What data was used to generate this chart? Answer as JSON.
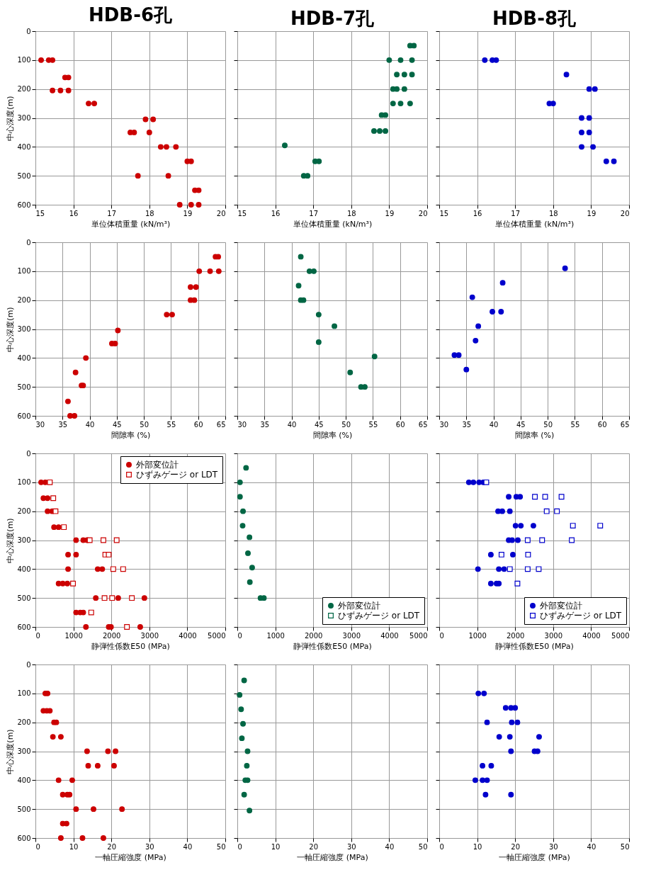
{
  "chart_data": [
    {
      "type": "scatter",
      "title": "HDB-6孔",
      "xlabel": "単位体積重量 (kN/m³)",
      "ylabel": "中心深度(m)",
      "xlim": [
        15,
        20
      ],
      "xticks": [
        15,
        16,
        17,
        18,
        19,
        20
      ],
      "ylim": [
        600,
        0
      ],
      "yticks": [
        0,
        100,
        200,
        300,
        400,
        500,
        600
      ],
      "grid": true,
      "marker": "circle",
      "series": [
        {
          "color": "#cc0000",
          "x": [
            15.15,
            15.35,
            15.45,
            15.78,
            15.87,
            15.45,
            15.66,
            15.87,
            16.4,
            16.55,
            17.9,
            18.1,
            17.5,
            17.6,
            18.0,
            18.3,
            18.45,
            18.7,
            19.0,
            19.1,
            17.7,
            18.5,
            19.2,
            19.3,
            18.8,
            19.1,
            19.3
          ],
          "values": [
            100,
            100,
            100,
            160,
            160,
            205,
            205,
            205,
            250,
            250,
            305,
            305,
            350,
            350,
            350,
            400,
            400,
            400,
            450,
            450,
            500,
            500,
            550,
            550,
            600,
            600,
            600
          ]
        }
      ]
    },
    {
      "type": "scatter",
      "title": "HDB-7孔",
      "xlabel": "単位体積重量 (kN/m³)",
      "xlim": [
        15,
        20
      ],
      "xticks": [
        15,
        16,
        17,
        18,
        19,
        20
      ],
      "ylim": [
        600,
        0
      ],
      "yticks": [
        0,
        100,
        200,
        300,
        400,
        500,
        600
      ],
      "tick_labels": "x",
      "grid": true,
      "marker": "circle",
      "series": [
        {
          "color": "#006644",
          "x": [
            19.55,
            19.65,
            19.0,
            19.3,
            19.6,
            19.2,
            19.4,
            19.6,
            19.1,
            19.2,
            19.4,
            19.1,
            19.3,
            19.55,
            18.8,
            18.9,
            18.6,
            18.75,
            18.9,
            16.25,
            17.05,
            17.15,
            16.75,
            16.85
          ],
          "values": [
            50,
            50,
            100,
            100,
            100,
            150,
            150,
            150,
            200,
            200,
            200,
            250,
            250,
            250,
            290,
            290,
            345,
            345,
            345,
            395,
            450,
            450,
            500,
            500
          ]
        }
      ]
    },
    {
      "type": "scatter",
      "title": "HDB-8孔",
      "xlabel": "単位体積重量 (kN/m³)",
      "xlim": [
        15,
        20
      ],
      "xticks": [
        15,
        16,
        17,
        18,
        19,
        20
      ],
      "ylim": [
        600,
        0
      ],
      "yticks": [
        0,
        100,
        200,
        300,
        400,
        500,
        600
      ],
      "tick_labels": "x",
      "grid": true,
      "marker": "circle",
      "series": [
        {
          "color": "#0000cc",
          "x": [
            16.2,
            16.4,
            16.5,
            18.35,
            18.95,
            19.1,
            17.9,
            18.0,
            18.75,
            18.95,
            18.75,
            18.95,
            18.75,
            19.05,
            19.4,
            19.6
          ],
          "values": [
            100,
            100,
            100,
            150,
            200,
            200,
            250,
            250,
            300,
            300,
            350,
            350,
            400,
            400,
            450,
            450
          ]
        }
      ]
    },
    {
      "type": "scatter",
      "xlabel": "間隙率 (%)",
      "ylabel": "中心深度(m)",
      "xlim": [
        30,
        65
      ],
      "xticks": [
        30,
        35,
        40,
        45,
        50,
        55,
        60,
        65
      ],
      "ylim": [
        600,
        0
      ],
      "yticks": [
        0,
        100,
        200,
        300,
        400,
        500,
        600
      ],
      "grid": true,
      "marker": "circle",
      "series": [
        {
          "color": "#cc0000",
          "x": [
            63.2,
            63.7,
            60.2,
            62.2,
            63.8,
            58.6,
            59.6,
            58.6,
            59.3,
            54.2,
            55.2,
            45.2,
            44.1,
            44.7,
            39.3,
            37.4,
            38.5,
            38.8,
            36.0,
            36.4,
            37.2
          ],
          "values": [
            50,
            50,
            100,
            100,
            100,
            155,
            155,
            200,
            200,
            250,
            250,
            305,
            350,
            350,
            400,
            450,
            495,
            495,
            550,
            600,
            600
          ]
        }
      ]
    },
    {
      "type": "scatter",
      "xlabel": "間隙率 (%)",
      "xlim": [
        30,
        65
      ],
      "xticks": [
        30,
        35,
        40,
        45,
        50,
        55,
        60,
        65
      ],
      "ylim": [
        600,
        0
      ],
      "yticks": [
        0,
        100,
        200,
        300,
        400,
        500,
        600
      ],
      "tick_labels": "x",
      "grid": true,
      "marker": "circle",
      "series": [
        {
          "color": "#006644",
          "x": [
            41.7,
            43.3,
            44.1,
            41.3,
            41.7,
            42.2,
            45.0,
            47.9,
            45.0,
            55.3,
            50.8,
            52.8,
            53.5
          ],
          "values": [
            50,
            100,
            100,
            150,
            200,
            200,
            250,
            290,
            345,
            395,
            450,
            500,
            500
          ]
        }
      ]
    },
    {
      "type": "scatter",
      "xlabel": "間隙率 (%)",
      "xlim": [
        30,
        65
      ],
      "xticks": [
        30,
        35,
        40,
        45,
        50,
        55,
        60,
        65
      ],
      "ylim": [
        600,
        0
      ],
      "yticks": [
        0,
        100,
        200,
        300,
        400,
        500,
        600
      ],
      "tick_labels": "x",
      "grid": true,
      "marker": "circle",
      "series": [
        {
          "color": "#0000cc",
          "x": [
            53.2,
            41.7,
            36.1,
            39.8,
            41.4,
            37.2,
            36.7,
            32.8,
            33.6,
            35.0
          ],
          "values": [
            90,
            140,
            190,
            240,
            240,
            290,
            340,
            390,
            390,
            440
          ]
        }
      ]
    },
    {
      "type": "scatter",
      "xlabel": "静弾性係数E50 (MPa)",
      "ylabel": "中心深度(m)",
      "xlim": [
        0,
        5000
      ],
      "xticks": [
        0,
        1000,
        2000,
        3000,
        4000,
        5000
      ],
      "ylim": [
        600,
        0
      ],
      "yticks": [
        0,
        100,
        200,
        300,
        400,
        500,
        600
      ],
      "grid": true,
      "legend": "top right",
      "series": [
        {
          "name": "外部変位計",
          "marker": "circle",
          "color": "#cc0000",
          "x": [
            150,
            260,
            210,
            320,
            320,
            440,
            490,
            610,
            1070,
            1260,
            1360,
            860,
            1070,
            860,
            1640,
            1760,
            610,
            720,
            840,
            1590,
            2180,
            2870,
            1070,
            1180,
            1260,
            1330,
            1930,
            1990,
            2760
          ],
          "values": [
            100,
            100,
            155,
            155,
            200,
            200,
            255,
            255,
            300,
            300,
            300,
            350,
            350,
            400,
            400,
            400,
            450,
            450,
            450,
            500,
            500,
            500,
            550,
            550,
            550,
            600,
            600,
            600,
            600
          ]
        },
        {
          "name": "ひずみゲージ or LDT",
          "marker": "square",
          "color": "#cc0000",
          "x": [
            380,
            470,
            530,
            750,
            1430,
            1790,
            2140,
            1840,
            1930,
            2050,
            2310,
            990,
            1820,
            2020,
            2540,
            1470,
            2410
          ],
          "values": [
            100,
            155,
            200,
            255,
            300,
            300,
            300,
            350,
            350,
            400,
            400,
            450,
            500,
            500,
            500,
            550,
            600
          ]
        }
      ]
    },
    {
      "type": "scatter",
      "xlabel": "静弾性係数E50 (MPa)",
      "xlim": [
        0,
        5000
      ],
      "xticks": [
        0,
        1000,
        2000,
        3000,
        4000,
        5000
      ],
      "ylim": [
        600,
        0
      ],
      "yticks": [
        0,
        100,
        200,
        300,
        400,
        500,
        600
      ],
      "tick_labels": "x",
      "grid": true,
      "legend": "bottom right",
      "series": [
        {
          "name": "外部変位計",
          "marker": "circle",
          "color": "#006644",
          "x": [
            230,
            70,
            70,
            150,
            140,
            320,
            280,
            390,
            330,
            610,
            700
          ],
          "values": [
            50,
            100,
            150,
            200,
            250,
            290,
            345,
            395,
            445,
            500,
            500
          ]
        },
        {
          "name": "ひずみゲージ or LDT",
          "marker": "square",
          "color": "#006644"
        }
      ]
    },
    {
      "type": "scatter",
      "xlabel": "静弾性係数E50 (MPa)",
      "xlim": [
        0,
        5000
      ],
      "xticks": [
        0,
        1000,
        2000,
        3000,
        4000,
        5000
      ],
      "ylim": [
        600,
        0
      ],
      "yticks": [
        0,
        100,
        200,
        300,
        400,
        500,
        600
      ],
      "tick_labels": "x",
      "grid": true,
      "legend": "bottom right",
      "series": [
        {
          "name": "外部変位計",
          "marker": "circle",
          "color": "#0000cc",
          "x": [
            780,
            900,
            1050,
            1160,
            1830,
            2030,
            2130,
            1550,
            1660,
            1860,
            2010,
            2150,
            2480,
            1830,
            1920,
            2070,
            1360,
            1940,
            1020,
            1570,
            1710,
            1360,
            1510,
            1570
          ],
          "values": [
            100,
            100,
            100,
            100,
            150,
            150,
            150,
            200,
            200,
            200,
            250,
            250,
            250,
            300,
            300,
            300,
            350,
            350,
            400,
            400,
            400,
            450,
            450,
            450
          ]
        },
        {
          "name": "ひずみゲージ or LDT",
          "marker": "square",
          "color": "#0000cc",
          "x": [
            1240,
            2520,
            2790,
            3220,
            2830,
            3100,
            3520,
            4240,
            2330,
            2710,
            3490,
            1640,
            2340,
            1860,
            2330,
            2620,
            2060
          ],
          "values": [
            100,
            150,
            150,
            150,
            200,
            200,
            250,
            250,
            300,
            300,
            300,
            350,
            350,
            400,
            400,
            400,
            450
          ]
        }
      ]
    },
    {
      "type": "scatter",
      "xlabel": "一軸圧縮強度 (MPa)",
      "ylabel": "中心深度(m)",
      "xlim": [
        0,
        50
      ],
      "xticks": [
        0,
        10,
        20,
        30,
        40,
        50
      ],
      "ylim": [
        600,
        0
      ],
      "yticks": [
        0,
        100,
        200,
        300,
        400,
        500,
        600
      ],
      "grid": true,
      "marker": "circle",
      "series": [
        {
          "color": "#cc0000",
          "x": [
            2.6,
            3.2,
            2.1,
            3.0,
            3.8,
            4.9,
            5.5,
            4.6,
            6.7,
            13.6,
            19.1,
            21.1,
            13.9,
            16.4,
            20.7,
            6.1,
            9.7,
            7.2,
            8.4,
            9.0,
            10.7,
            15.3,
            22.8,
            7.2,
            8.2,
            6.7,
            12.4,
            17.9
          ],
          "values": [
            100,
            100,
            160,
            160,
            160,
            200,
            200,
            250,
            250,
            300,
            300,
            300,
            350,
            350,
            350,
            400,
            400,
            450,
            450,
            450,
            500,
            500,
            500,
            550,
            550,
            600,
            600,
            600
          ]
        }
      ]
    },
    {
      "type": "scatter",
      "xlabel": "一軸圧縮強度 (MPa)",
      "xlim": [
        0,
        50
      ],
      "xticks": [
        0,
        10,
        20,
        30,
        40,
        50
      ],
      "ylim": [
        600,
        0
      ],
      "yticks": [
        0,
        100,
        200,
        300,
        400,
        500,
        600
      ],
      "tick_labels": "x",
      "grid": true,
      "marker": "circle",
      "series": [
        {
          "color": "#006644",
          "x": [
            1.8,
            0.6,
            1.0,
            1.5,
            1.2,
            2.7,
            2.5,
            2.1,
            2.7,
            1.8,
            3.2
          ],
          "values": [
            55,
            105,
            155,
            205,
            255,
            300,
            350,
            400,
            400,
            450,
            505
          ]
        }
      ]
    },
    {
      "type": "scatter",
      "xlabel": "一軸圧縮強度 (MPa)",
      "xlim": [
        0,
        50
      ],
      "xticks": [
        0,
        10,
        20,
        30,
        40,
        50
      ],
      "ylim": [
        600,
        0
      ],
      "yticks": [
        0,
        100,
        200,
        300,
        400,
        500,
        600
      ],
      "tick_labels": "x",
      "grid": true,
      "marker": "circle",
      "series": [
        {
          "color": "#0000cc",
          "x": [
            10.3,
            11.8,
            17.5,
            18.9,
            20.0,
            12.6,
            19.1,
            20.6,
            15.8,
            18.6,
            26.3,
            18.9,
            25.1,
            25.9,
            11.4,
            13.7,
            9.5,
            11.4,
            12.6,
            12.2,
            18.9
          ],
          "values": [
            100,
            100,
            150,
            150,
            150,
            200,
            200,
            200,
            250,
            250,
            250,
            300,
            300,
            300,
            350,
            350,
            400,
            400,
            400,
            450,
            450
          ]
        }
      ]
    }
  ]
}
